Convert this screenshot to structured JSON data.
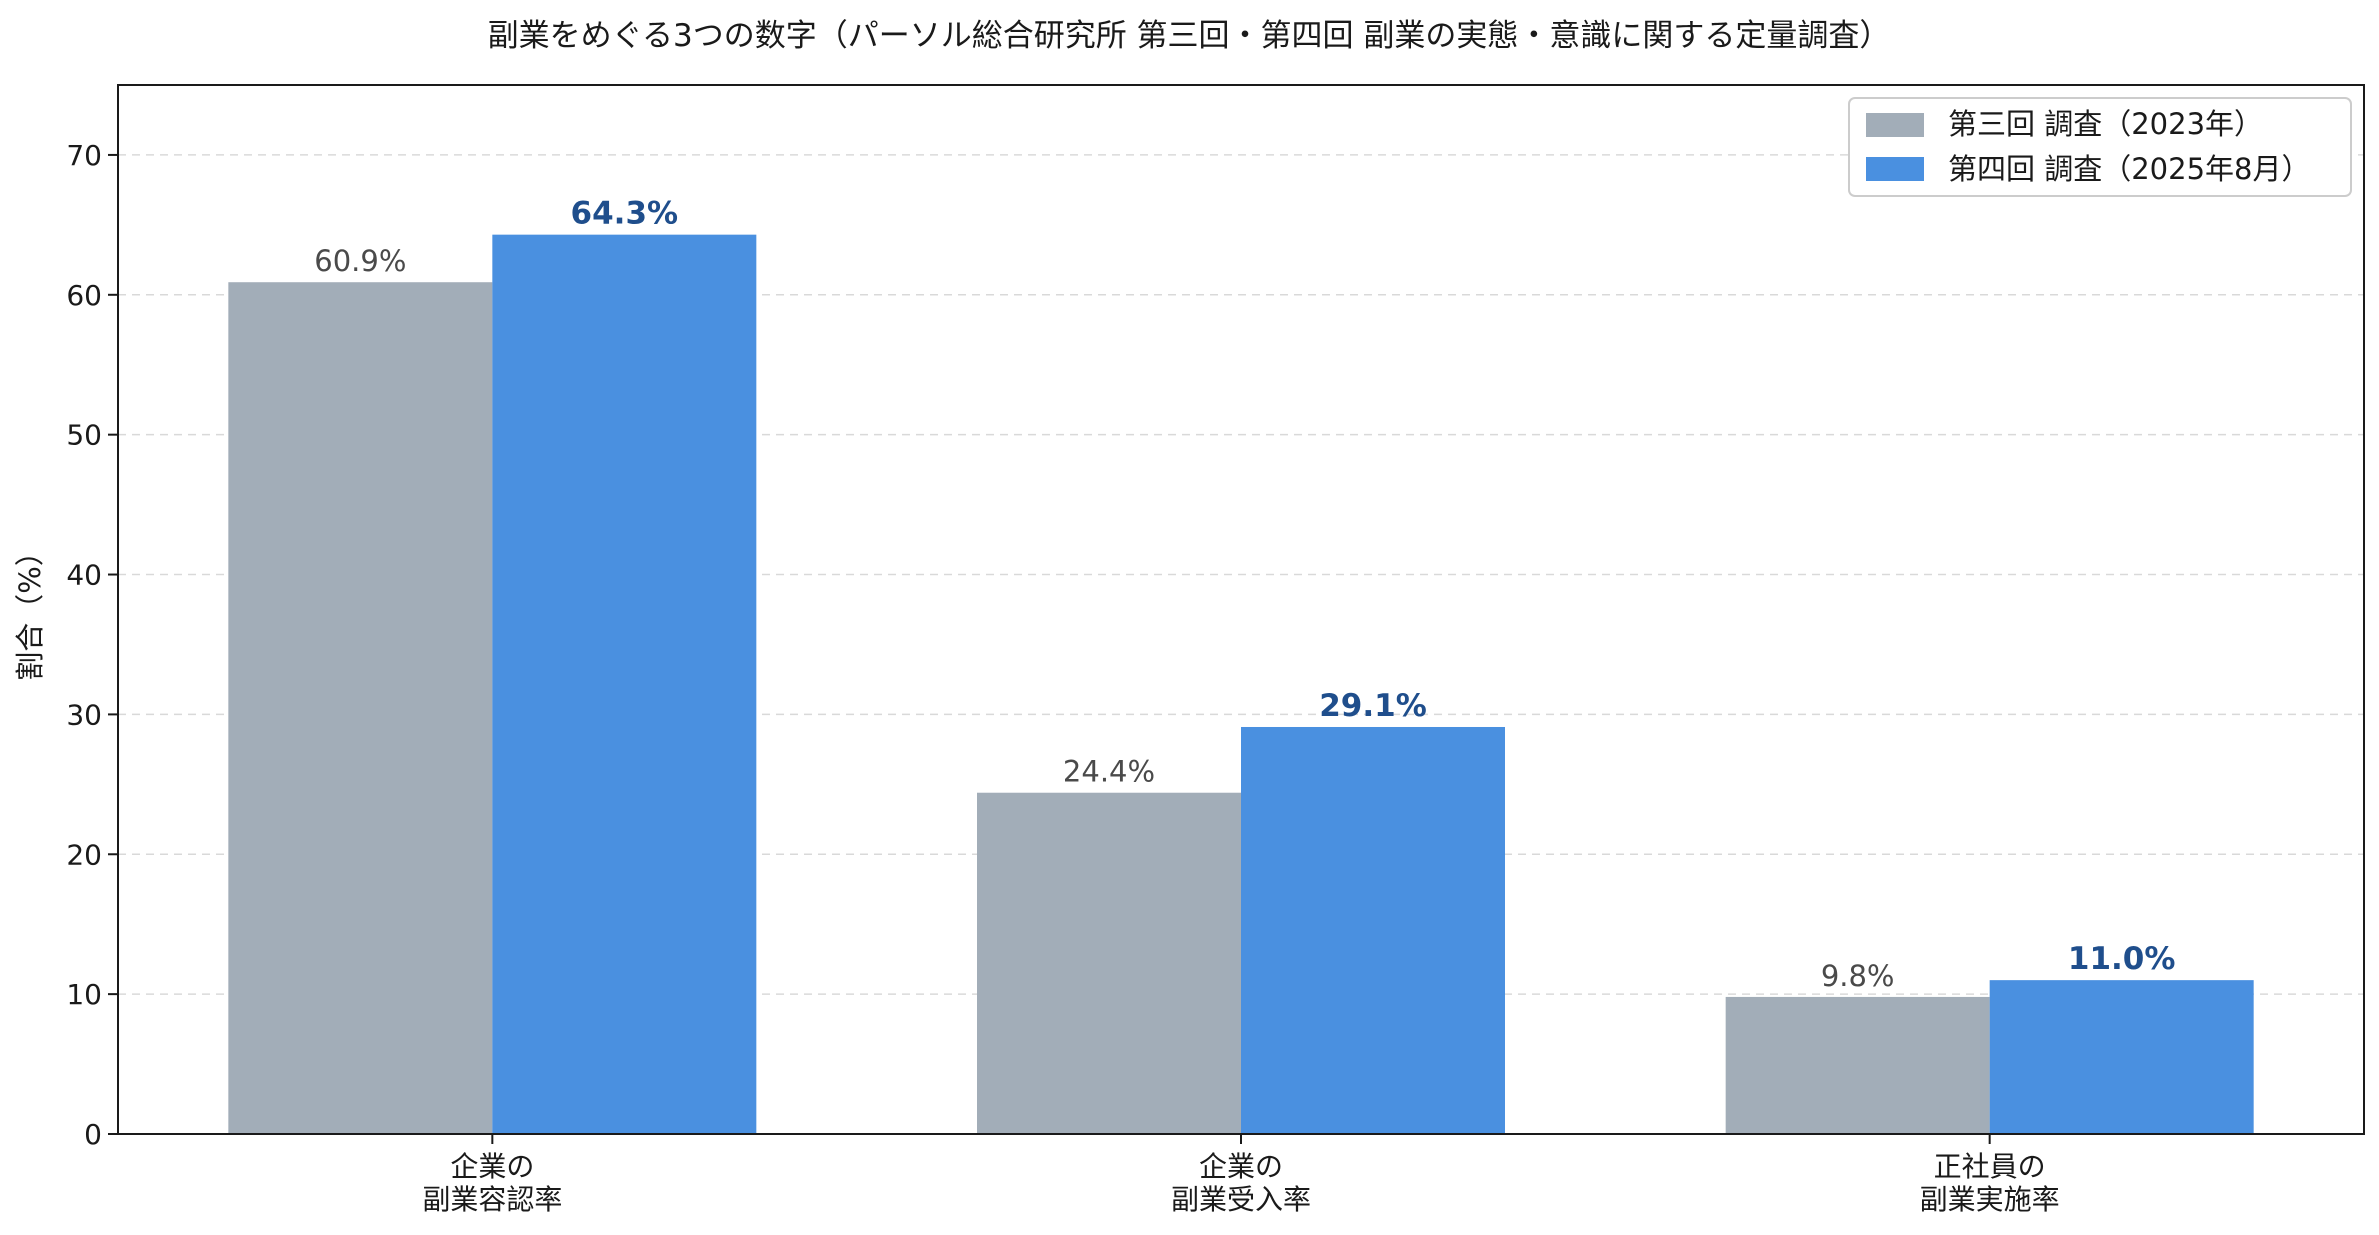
{
  "chart_data": {
    "type": "bar",
    "title": "副業をめぐる3つの数字（パーソル総合研究所 第三回・第四回 副業の実態・意識に関する定量調査）",
    "xlabel": "",
    "ylabel": "割合（%）",
    "ylim": [
      0,
      75
    ],
    "yticks": [
      0,
      10,
      20,
      30,
      40,
      50,
      60,
      70
    ],
    "grid": true,
    "legend_position": "top-right",
    "categories": [
      [
        "企業の",
        "副業容認率"
      ],
      [
        "企業の",
        "副業受入率"
      ],
      [
        "正社員の",
        "副業実施率"
      ]
    ],
    "series": [
      {
        "name": "第三回 調査（2023年）",
        "values": [
          60.9,
          24.4,
          9.8
        ],
        "labels": [
          "60.9%",
          "24.4%",
          "9.8%"
        ],
        "color": "#a2adb8",
        "label_color": "#4a4a4a"
      },
      {
        "name": "第四回 調査（2025年8月）",
        "values": [
          64.3,
          29.1,
          11.0
        ],
        "labels": [
          "64.3%",
          "29.1%",
          "11.0%"
        ],
        "color": "#4a90e0",
        "label_color": "#1f4e8c"
      }
    ]
  }
}
